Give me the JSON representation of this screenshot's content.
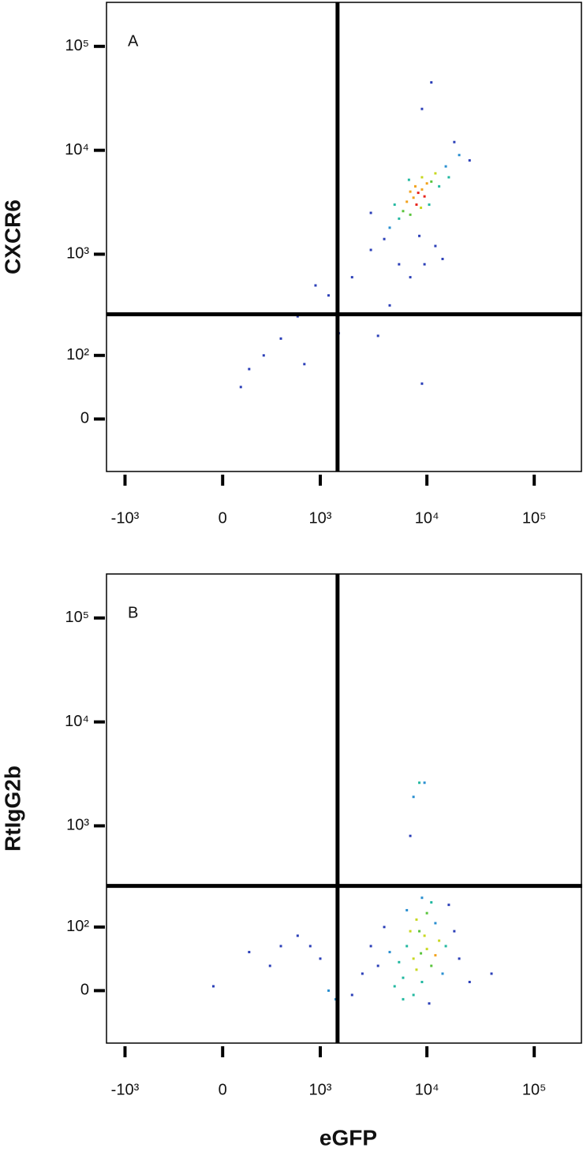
{
  "chart_data": [
    {
      "type": "scatter",
      "label": "A",
      "ylabel": "CXCR6",
      "xlim": [
        -1500,
        280000
      ],
      "ylim": [
        -75,
        265000
      ],
      "xticks": [
        {
          "value": -1000,
          "label": "-10³"
        },
        0,
        {
          "value": 1000,
          "label": "10³"
        },
        {
          "value": 10000,
          "label": "10⁴"
        },
        {
          "value": 100000,
          "label": "10⁵"
        }
      ],
      "yticks": [
        0,
        {
          "value": 100,
          "label": "10²"
        },
        {
          "value": 1000,
          "label": "10³"
        },
        {
          "value": 10000,
          "label": "10⁴"
        },
        {
          "value": 100000,
          "label": "10⁵"
        }
      ],
      "gates": {
        "x": 1460,
        "y": 262
      },
      "x": [
        8300,
        7500,
        9000,
        8000,
        7000,
        9500,
        6500,
        10000,
        8800,
        7800,
        6000,
        11000,
        12000,
        5500,
        9000,
        7000,
        13000,
        5000,
        10500,
        6800,
        15000,
        4500,
        16000,
        8500,
        12000,
        9500,
        14000,
        4000,
        3000,
        20000,
        18000,
        9000,
        11000,
        2000,
        1200,
        900,
        600,
        400,
        250,
        150,
        100,
        700,
        1500,
        3500,
        4500,
        9000,
        5500,
        7000,
        25000,
        3000
      ],
      "y": [
        3900,
        3500,
        4200,
        3000,
        4000,
        3600,
        3200,
        4800,
        2800,
        4500,
        2600,
        5000,
        6000,
        2200,
        5500,
        2400,
        4500,
        3000,
        3000,
        5200,
        7000,
        1800,
        5500,
        1500,
        1200,
        800,
        900,
        1400,
        1100,
        9000,
        12000,
        25000,
        45000,
        600,
        400,
        500,
        250,
        150,
        100,
        70,
        40,
        80,
        170,
        160,
        320,
        45,
        800,
        600,
        8000,
        2500
      ]
    },
    {
      "type": "scatter",
      "label": "B",
      "ylabel": "RtIgG2b",
      "xlabel": "eGFP",
      "xlim": [
        -1500,
        280000
      ],
      "ylim": [
        -75,
        265000
      ],
      "xticks": [
        {
          "value": -1000,
          "label": "-10³"
        },
        0,
        {
          "value": 1000,
          "label": "10³"
        },
        {
          "value": 10000,
          "label": "10⁴"
        },
        {
          "value": 100000,
          "label": "10⁵"
        }
      ],
      "yticks": [
        0,
        {
          "value": 100,
          "label": "10²"
        },
        {
          "value": 1000,
          "label": "10³"
        },
        {
          "value": 10000,
          "label": "10⁴"
        },
        {
          "value": 100000,
          "label": "10⁵"
        }
      ],
      "gates": {
        "x": 1460,
        "y": 262
      },
      "x": [
        8800,
        7500,
        10000,
        8000,
        6500,
        9500,
        12000,
        5500,
        11000,
        7000,
        9000,
        6000,
        13000,
        4500,
        15000,
        3500,
        8000,
        10000,
        5000,
        7500,
        12000,
        18000,
        3000,
        20000,
        14000,
        6000,
        2500,
        9000,
        11000,
        4000,
        40000,
        7500,
        8500,
        9500,
        7000,
        400,
        600,
        800,
        150,
        300,
        -50,
        1200,
        1400,
        1000,
        25000,
        6500,
        16000,
        2000,
        10500,
        8500
      ],
      "y": [
        48,
        40,
        55,
        25,
        60,
        80,
        45,
        35,
        30,
        90,
        10,
        15,
        70,
        50,
        60,
        30,
        120,
        140,
        5,
        -5,
        110,
        90,
        60,
        40,
        20,
        -10,
        20,
        200,
        180,
        100,
        20,
        1900,
        2600,
        2600,
        800,
        60,
        80,
        60,
        50,
        30,
        5,
        0,
        -10,
        40,
        10,
        150,
        170,
        -5,
        -15,
        90
      ]
    }
  ]
}
